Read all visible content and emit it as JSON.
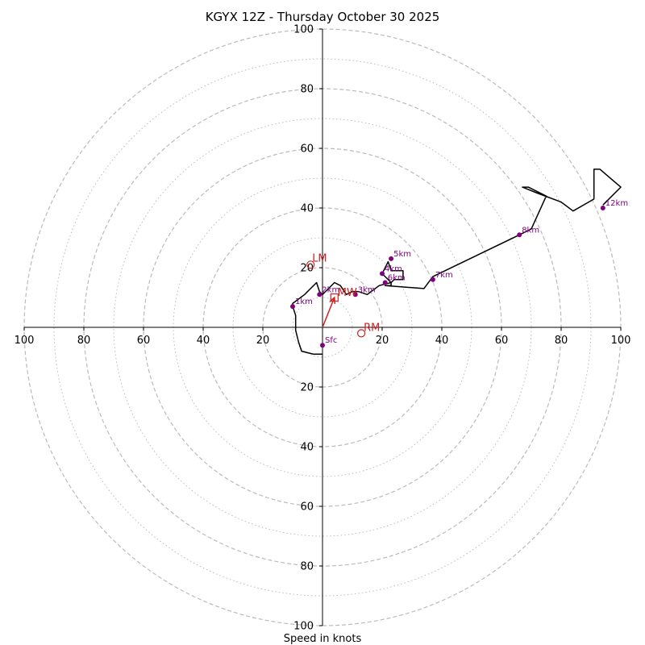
{
  "chart_data": {
    "type": "hodograph",
    "title": "KGYX 12Z - Thursday October 30 2025",
    "xlabel": "Speed in knots",
    "axis_range": [
      -100,
      100
    ],
    "ring_radii_dashed": [
      20,
      40,
      60,
      80,
      100
    ],
    "ring_radii_dotted": [
      10,
      30,
      50,
      70,
      90
    ],
    "x_tick_labels": [
      "100",
      "80",
      "60",
      "40",
      "20",
      "20",
      "40",
      "60",
      "80",
      "100"
    ],
    "y_tick_labels": [
      "100",
      "80",
      "60",
      "40",
      "20",
      "20",
      "40",
      "60",
      "80",
      "100"
    ],
    "wind_trace": [
      [
        0,
        -9
      ],
      [
        -3,
        -9
      ],
      [
        -7,
        -8
      ],
      [
        -8,
        -5
      ],
      [
        -9,
        -1
      ],
      [
        -9,
        4
      ],
      [
        -10,
        7
      ],
      [
        -10,
        8
      ],
      [
        -6,
        11
      ],
      [
        -2,
        15
      ],
      [
        -1,
        12
      ],
      [
        0,
        11
      ],
      [
        2,
        13
      ],
      [
        4,
        15
      ],
      [
        6,
        14
      ],
      [
        8,
        11
      ],
      [
        10,
        12
      ],
      [
        12,
        12
      ],
      [
        15,
        11
      ],
      [
        19,
        14
      ],
      [
        23,
        15
      ],
      [
        20,
        18
      ],
      [
        22,
        22
      ],
      [
        23,
        19
      ],
      [
        27,
        19
      ],
      [
        27,
        16
      ],
      [
        24,
        16
      ],
      [
        23,
        15
      ],
      [
        23,
        14
      ],
      [
        21,
        14
      ],
      [
        34,
        13
      ],
      [
        37,
        17
      ],
      [
        66,
        31
      ],
      [
        70,
        33
      ],
      [
        75,
        44
      ],
      [
        69,
        47
      ],
      [
        67,
        47
      ],
      [
        72,
        45
      ],
      [
        80,
        42
      ],
      [
        84,
        39
      ],
      [
        91,
        43
      ],
      [
        91,
        53
      ],
      [
        93,
        53
      ],
      [
        100,
        47
      ],
      [
        94,
        41
      ]
    ],
    "height_markers": [
      {
        "label": "Sfc",
        "u": 0,
        "v": -6
      },
      {
        "label": "1km",
        "u": -10,
        "v": 7
      },
      {
        "label": "2km",
        "u": -1,
        "v": 11
      },
      {
        "label": "3km",
        "u": 11,
        "v": 11
      },
      {
        "label": "4km",
        "u": 20,
        "v": 18
      },
      {
        "label": "5km",
        "u": 23,
        "v": 23
      },
      {
        "label": "6km",
        "u": 21,
        "v": 15
      },
      {
        "label": "7km",
        "u": 37,
        "v": 16
      },
      {
        "label": "8km",
        "u": 66,
        "v": 31
      },
      {
        "label": "12km",
        "u": 94,
        "v": 40
      }
    ],
    "storm_motion": {
      "lm": {
        "label": "LM",
        "u": -4,
        "v": 21
      },
      "mw": {
        "label": "MW",
        "u": 4,
        "v": 10
      },
      "rm": {
        "label": "RM",
        "u": 13,
        "v": -2
      }
    },
    "colors": {
      "trace": "#000000",
      "marker": "#800080",
      "storm": "#cc2222",
      "ring": "#bbbbbb",
      "axis": "#000000"
    }
  }
}
